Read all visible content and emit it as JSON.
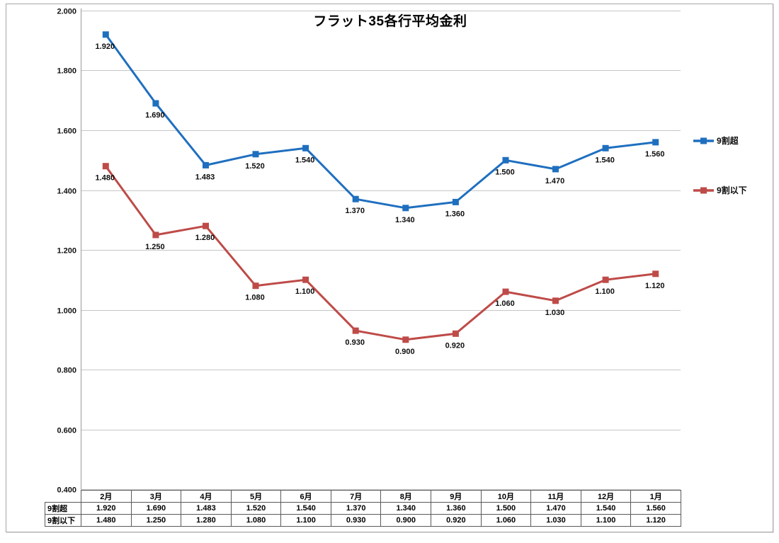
{
  "title": "フラット35各行平均金利",
  "chart_data": {
    "type": "line",
    "title": "フラット35各行平均金利",
    "categories": [
      "2月",
      "3月",
      "4月",
      "5月",
      "6月",
      "7月",
      "8月",
      "9月",
      "10月",
      "11月",
      "12月",
      "1月"
    ],
    "series": [
      {
        "name": "9割超",
        "color": "#1f6fbf",
        "marker": "square",
        "values": [
          1.92,
          1.69,
          1.483,
          1.52,
          1.54,
          1.37,
          1.34,
          1.36,
          1.5,
          1.47,
          1.54,
          1.56
        ],
        "labels": [
          "1.920",
          "1.690",
          "1.483",
          "1.520",
          "1.540",
          "1.370",
          "1.340",
          "1.360",
          "1.500",
          "1.470",
          "1.540",
          "1.560"
        ]
      },
      {
        "name": "9割以下",
        "color": "#be4b48",
        "marker": "square",
        "values": [
          1.48,
          1.25,
          1.28,
          1.08,
          1.1,
          0.93,
          0.9,
          0.92,
          1.06,
          1.03,
          1.1,
          1.12
        ],
        "labels": [
          "1.480",
          "1.250",
          "1.280",
          "1.080",
          "1.100",
          "0.930",
          "0.900",
          "0.920",
          "1.060",
          "1.030",
          "1.100",
          "1.120"
        ]
      }
    ],
    "ylim": [
      0.4,
      2.0
    ],
    "ytick_step": 0.2,
    "ytick_labels": [
      "2.000",
      "1.800",
      "1.600",
      "1.400",
      "1.200",
      "1.000",
      "0.800",
      "0.600",
      "0.400"
    ],
    "grid": "horizontal-major",
    "legend_position": "right",
    "data_labels_position": "below"
  },
  "table": {
    "col_headers": [
      "2月",
      "3月",
      "4月",
      "5月",
      "6月",
      "7月",
      "8月",
      "9月",
      "10月",
      "11月",
      "12月",
      "1月"
    ],
    "rows": [
      {
        "label": "9割超",
        "values": [
          "1.920",
          "1.690",
          "1.483",
          "1.520",
          "1.540",
          "1.370",
          "1.340",
          "1.360",
          "1.500",
          "1.470",
          "1.540",
          "1.560"
        ]
      },
      {
        "label": "9割以下",
        "values": [
          "1.480",
          "1.250",
          "1.280",
          "1.080",
          "1.100",
          "0.930",
          "0.900",
          "0.920",
          "1.060",
          "1.030",
          "1.100",
          "1.120"
        ]
      }
    ]
  },
  "colors": {
    "series_1": "#1f6fbf",
    "series_2": "#be4b48",
    "gridline": "#c6c6c6",
    "axis_line": "#9a9a9a",
    "table_border": "#595959",
    "frame_border": "#a6a6a6",
    "text": "#000000"
  }
}
